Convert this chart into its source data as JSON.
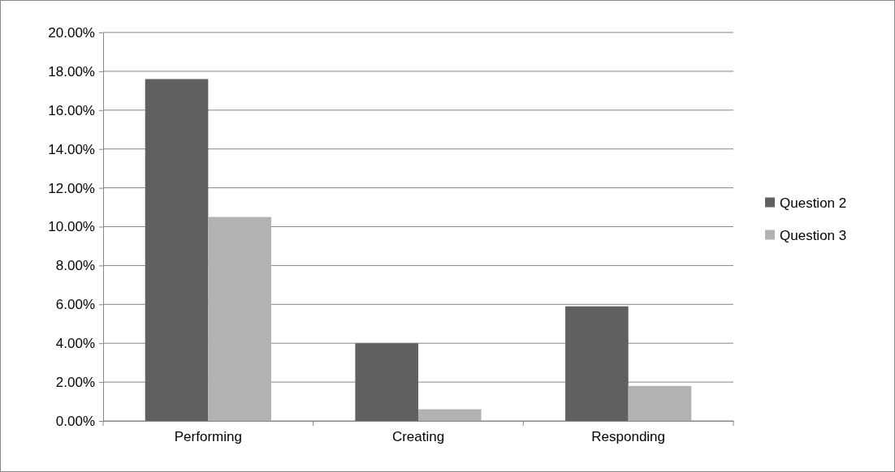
{
  "chart_data": {
    "type": "bar",
    "categories": [
      "Performing",
      "Creating",
      "Responding"
    ],
    "series": [
      {
        "name": "Question 2",
        "color": "#606060",
        "values": [
          17.6,
          4.0,
          5.9
        ]
      },
      {
        "name": "Question 3",
        "color": "#b2b2b2",
        "values": [
          10.5,
          0.6,
          1.8
        ]
      }
    ],
    "ylim": [
      0,
      20
    ],
    "yticks": [
      {
        "value": 0,
        "label": "0.00%"
      },
      {
        "value": 2,
        "label": "2.00%"
      },
      {
        "value": 4,
        "label": "4.00%"
      },
      {
        "value": 6,
        "label": "6.00%"
      },
      {
        "value": 8,
        "label": "8.00%"
      },
      {
        "value": 10,
        "label": "10.00%"
      },
      {
        "value": 12,
        "label": "12.00%"
      },
      {
        "value": 14,
        "label": "14.00%"
      },
      {
        "value": 16,
        "label": "16.00%"
      },
      {
        "value": 18,
        "label": "18.00%"
      },
      {
        "value": 20,
        "label": "20.00%"
      }
    ],
    "grid": "y",
    "legend": "right"
  }
}
